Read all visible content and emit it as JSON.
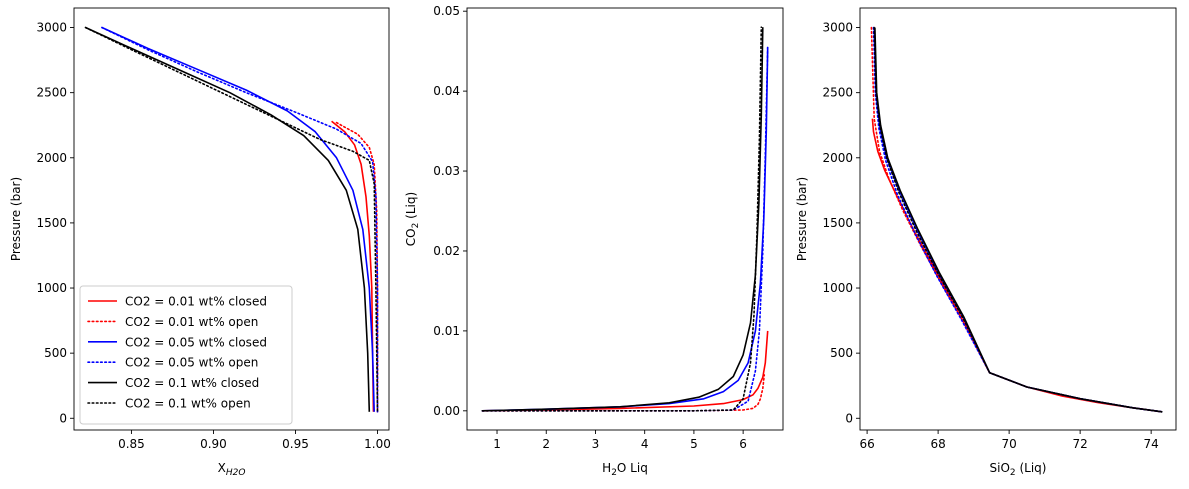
{
  "chart_data": [
    {
      "type": "line",
      "xlabel": "X",
      "xlabel_sub": "H2O",
      "ylabel": "Pressure (bar)",
      "xlim": [
        0.815,
        1.007
      ],
      "ylim": [
        -90,
        3150
      ],
      "xticks": [
        0.85,
        0.9,
        0.95,
        1.0
      ],
      "xtick_labels": [
        "0.85",
        "0.90",
        "0.95",
        "1.00"
      ],
      "yticks": [
        0,
        500,
        1000,
        1500,
        2000,
        2500,
        3000
      ],
      "ytick_labels": [
        "0",
        "500",
        "1000",
        "1500",
        "2000",
        "2500",
        "3000"
      ],
      "legend": {
        "placement": "lower-left",
        "entries": [
          {
            "label": "CO2 = 0.01 wt% closed",
            "color": "#ff0000",
            "style": "solid"
          },
          {
            "label": "CO2 = 0.01 wt% open",
            "color": "#ff0000",
            "style": "dotted"
          },
          {
            "label": "CO2 = 0.05 wt% closed",
            "color": "#0000ff",
            "style": "solid"
          },
          {
            "label": "CO2 = 0.05 wt% open",
            "color": "#0000ff",
            "style": "dotted"
          },
          {
            "label": "CO2 = 0.1 wt% closed",
            "color": "#000000",
            "style": "solid"
          },
          {
            "label": "CO2 = 0.1 wt% open",
            "color": "#000000",
            "style": "dotted"
          }
        ]
      },
      "series": [
        {
          "color": "#ff0000",
          "style": "solid",
          "x": [
            0.972,
            0.98,
            0.986,
            0.99,
            0.993,
            0.995,
            0.9965,
            0.997,
            0.9975
          ],
          "y": [
            2280,
            2200,
            2100,
            1950,
            1700,
            1400,
            1000,
            500,
            50
          ]
        },
        {
          "color": "#ff0000",
          "style": "dotted",
          "x": [
            0.975,
            0.988,
            0.995,
            0.998,
            0.9995,
            1.0,
            1.0,
            1.0
          ],
          "y": [
            2270,
            2180,
            2080,
            1950,
            1600,
            1000,
            500,
            50
          ]
        },
        {
          "color": "#0000ff",
          "style": "solid",
          "x": [
            0.832,
            0.86,
            0.89,
            0.92,
            0.945,
            0.962,
            0.975,
            0.985,
            0.991,
            0.995,
            0.997,
            0.998
          ],
          "y": [
            3000,
            2840,
            2680,
            2520,
            2360,
            2200,
            2000,
            1750,
            1450,
            1000,
            500,
            50
          ]
        },
        {
          "color": "#0000ff",
          "style": "dotted",
          "x": [
            0.832,
            0.86,
            0.89,
            0.92,
            0.95,
            0.975,
            0.99,
            0.997,
            0.999,
            1.0,
            1.0
          ],
          "y": [
            3000,
            2830,
            2660,
            2500,
            2350,
            2220,
            2110,
            1970,
            1700,
            1000,
            50
          ]
        },
        {
          "color": "#000000",
          "style": "solid",
          "x": [
            0.822,
            0.85,
            0.88,
            0.91,
            0.935,
            0.955,
            0.97,
            0.981,
            0.988,
            0.992,
            0.994,
            0.995
          ],
          "y": [
            3000,
            2840,
            2670,
            2500,
            2330,
            2170,
            1980,
            1750,
            1450,
            1000,
            500,
            50
          ]
        },
        {
          "color": "#000000",
          "style": "dotted",
          "x": [
            0.822,
            0.85,
            0.88,
            0.91,
            0.94,
            0.965,
            0.985,
            0.995,
            0.998,
            0.999,
            1.0
          ],
          "y": [
            3000,
            2830,
            2650,
            2470,
            2290,
            2140,
            2050,
            1980,
            1800,
            1000,
            50
          ]
        }
      ]
    },
    {
      "type": "line",
      "xlabel": "H",
      "xlabel_sub": "2",
      "xlabel_rest": "O Liq",
      "ylabel": "CO",
      "ylabel_sub": "2",
      "ylabel_rest": " (Liq)",
      "xlim": [
        0.39,
        6.81
      ],
      "ylim": [
        -0.0024,
        0.0504
      ],
      "xticks": [
        1,
        2,
        3,
        4,
        5,
        6
      ],
      "xtick_labels": [
        "1",
        "2",
        "3",
        "4",
        "5",
        "6"
      ],
      "yticks": [
        0.0,
        0.01,
        0.02,
        0.03,
        0.04,
        0.05
      ],
      "ytick_labels": [
        "0.00",
        "0.01",
        "0.02",
        "0.03",
        "0.04",
        "0.05"
      ],
      "series": [
        {
          "color": "#ff0000",
          "style": "solid",
          "x": [
            0.7,
            2.0,
            3.5,
            5.0,
            5.6,
            6.0,
            6.2,
            6.3,
            6.4,
            6.45,
            6.5
          ],
          "y": [
            0.0,
            0.0001,
            0.0003,
            0.0006,
            0.0009,
            0.0014,
            0.002,
            0.0028,
            0.0042,
            0.006,
            0.01
          ]
        },
        {
          "color": "#ff0000",
          "style": "dotted",
          "x": [
            0.7,
            3.0,
            5.0,
            6.0,
            6.2,
            6.3,
            6.35,
            6.4,
            6.43
          ],
          "y": [
            0.0,
            0.0,
            0.0,
            0.0001,
            0.0003,
            0.0008,
            0.0015,
            0.0028,
            0.0045
          ]
        },
        {
          "color": "#0000ff",
          "style": "solid",
          "x": [
            0.7,
            2.0,
            3.5,
            4.5,
            5.2,
            5.6,
            5.9,
            6.1,
            6.25,
            6.35,
            6.42,
            6.47,
            6.5
          ],
          "y": [
            0.0,
            0.0002,
            0.0005,
            0.0009,
            0.0015,
            0.0024,
            0.0038,
            0.006,
            0.01,
            0.016,
            0.024,
            0.035,
            0.0455
          ]
        },
        {
          "color": "#0000ff",
          "style": "dotted",
          "x": [
            0.7,
            3.0,
            5.0,
            5.8,
            6.1,
            6.25,
            6.33,
            6.4,
            6.45,
            6.5
          ],
          "y": [
            0.0,
            0.0,
            0.0,
            0.0001,
            0.0012,
            0.005,
            0.01,
            0.02,
            0.032,
            0.0455
          ]
        },
        {
          "color": "#000000",
          "style": "solid",
          "x": [
            0.7,
            2.0,
            3.5,
            4.5,
            5.1,
            5.5,
            5.8,
            6.0,
            6.15,
            6.25,
            6.32,
            6.37,
            6.4
          ],
          "y": [
            0.0,
            0.0002,
            0.0005,
            0.001,
            0.0017,
            0.0027,
            0.0043,
            0.007,
            0.011,
            0.017,
            0.026,
            0.037,
            0.048
          ]
        },
        {
          "color": "#000000",
          "style": "dotted",
          "x": [
            0.7,
            3.0,
            5.0,
            5.8,
            6.0,
            6.15,
            6.22,
            6.28,
            6.33,
            6.37
          ],
          "y": [
            0.0,
            0.0,
            0.0,
            0.0001,
            0.0015,
            0.006,
            0.012,
            0.022,
            0.034,
            0.048
          ]
        }
      ]
    },
    {
      "type": "line",
      "xlabel": "SiO",
      "xlabel_sub": "2",
      "xlabel_rest": " (Liq)",
      "ylabel": "Pressure (bar)",
      "xlim": [
        65.8,
        74.7
      ],
      "ylim": [
        -90,
        3150
      ],
      "xticks": [
        66,
        68,
        70,
        72,
        74
      ],
      "xtick_labels": [
        "66",
        "68",
        "70",
        "72",
        "74"
      ],
      "yticks": [
        0,
        500,
        1000,
        1500,
        2000,
        2500,
        3000
      ],
      "ytick_labels": [
        "0",
        "500",
        "1000",
        "1500",
        "2000",
        "2500",
        "3000"
      ],
      "series": [
        {
          "color": "#ff0000",
          "style": "solid",
          "x": [
            66.15,
            66.18,
            66.22,
            66.3,
            66.5,
            66.85,
            67.3,
            67.9,
            68.6,
            69.45,
            70.5,
            71.5,
            72.5,
            73.5,
            74.3
          ],
          "y": [
            2300,
            2200,
            2150,
            2050,
            1900,
            1700,
            1450,
            1150,
            800,
            350,
            240,
            170,
            120,
            80,
            50
          ]
        },
        {
          "color": "#ff0000",
          "style": "dotted",
          "x": [
            66.12,
            66.2,
            66.35,
            66.6,
            67.0,
            67.5,
            68.1,
            68.8,
            69.45,
            70.5,
            72.0,
            73.5,
            74.3
          ],
          "y": [
            3000,
            2300,
            2050,
            1850,
            1600,
            1330,
            1030,
            700,
            350,
            240,
            150,
            80,
            50
          ]
        },
        {
          "color": "#0000ff",
          "style": "solid",
          "x": [
            66.2,
            66.25,
            66.35,
            66.55,
            66.9,
            67.4,
            68.0,
            68.7,
            69.45,
            70.5,
            72.0,
            73.5,
            74.3
          ],
          "y": [
            3000,
            2500,
            2250,
            2000,
            1750,
            1450,
            1120,
            780,
            350,
            240,
            150,
            80,
            50
          ]
        },
        {
          "color": "#0000ff",
          "style": "dotted",
          "x": [
            66.18,
            66.23,
            66.33,
            66.52,
            66.85,
            67.35,
            67.95,
            68.65,
            69.45,
            70.5,
            72.0,
            73.5,
            74.3
          ],
          "y": [
            3000,
            2500,
            2230,
            1980,
            1720,
            1420,
            1100,
            760,
            350,
            240,
            150,
            80,
            50
          ]
        },
        {
          "color": "#000000",
          "style": "solid",
          "x": [
            66.22,
            66.27,
            66.38,
            66.58,
            66.93,
            67.43,
            68.03,
            68.72,
            69.45,
            70.5,
            72.0,
            73.5,
            74.3
          ],
          "y": [
            3000,
            2500,
            2250,
            2000,
            1750,
            1450,
            1120,
            780,
            350,
            240,
            150,
            80,
            50
          ]
        },
        {
          "color": "#000000",
          "style": "dotted",
          "x": [
            66.2,
            66.25,
            66.36,
            66.56,
            66.9,
            67.4,
            68.0,
            68.7,
            69.45,
            70.5,
            72.0,
            73.5,
            74.3
          ],
          "y": [
            3000,
            2500,
            2240,
            1990,
            1730,
            1430,
            1110,
            770,
            350,
            240,
            150,
            80,
            50
          ]
        }
      ]
    }
  ]
}
